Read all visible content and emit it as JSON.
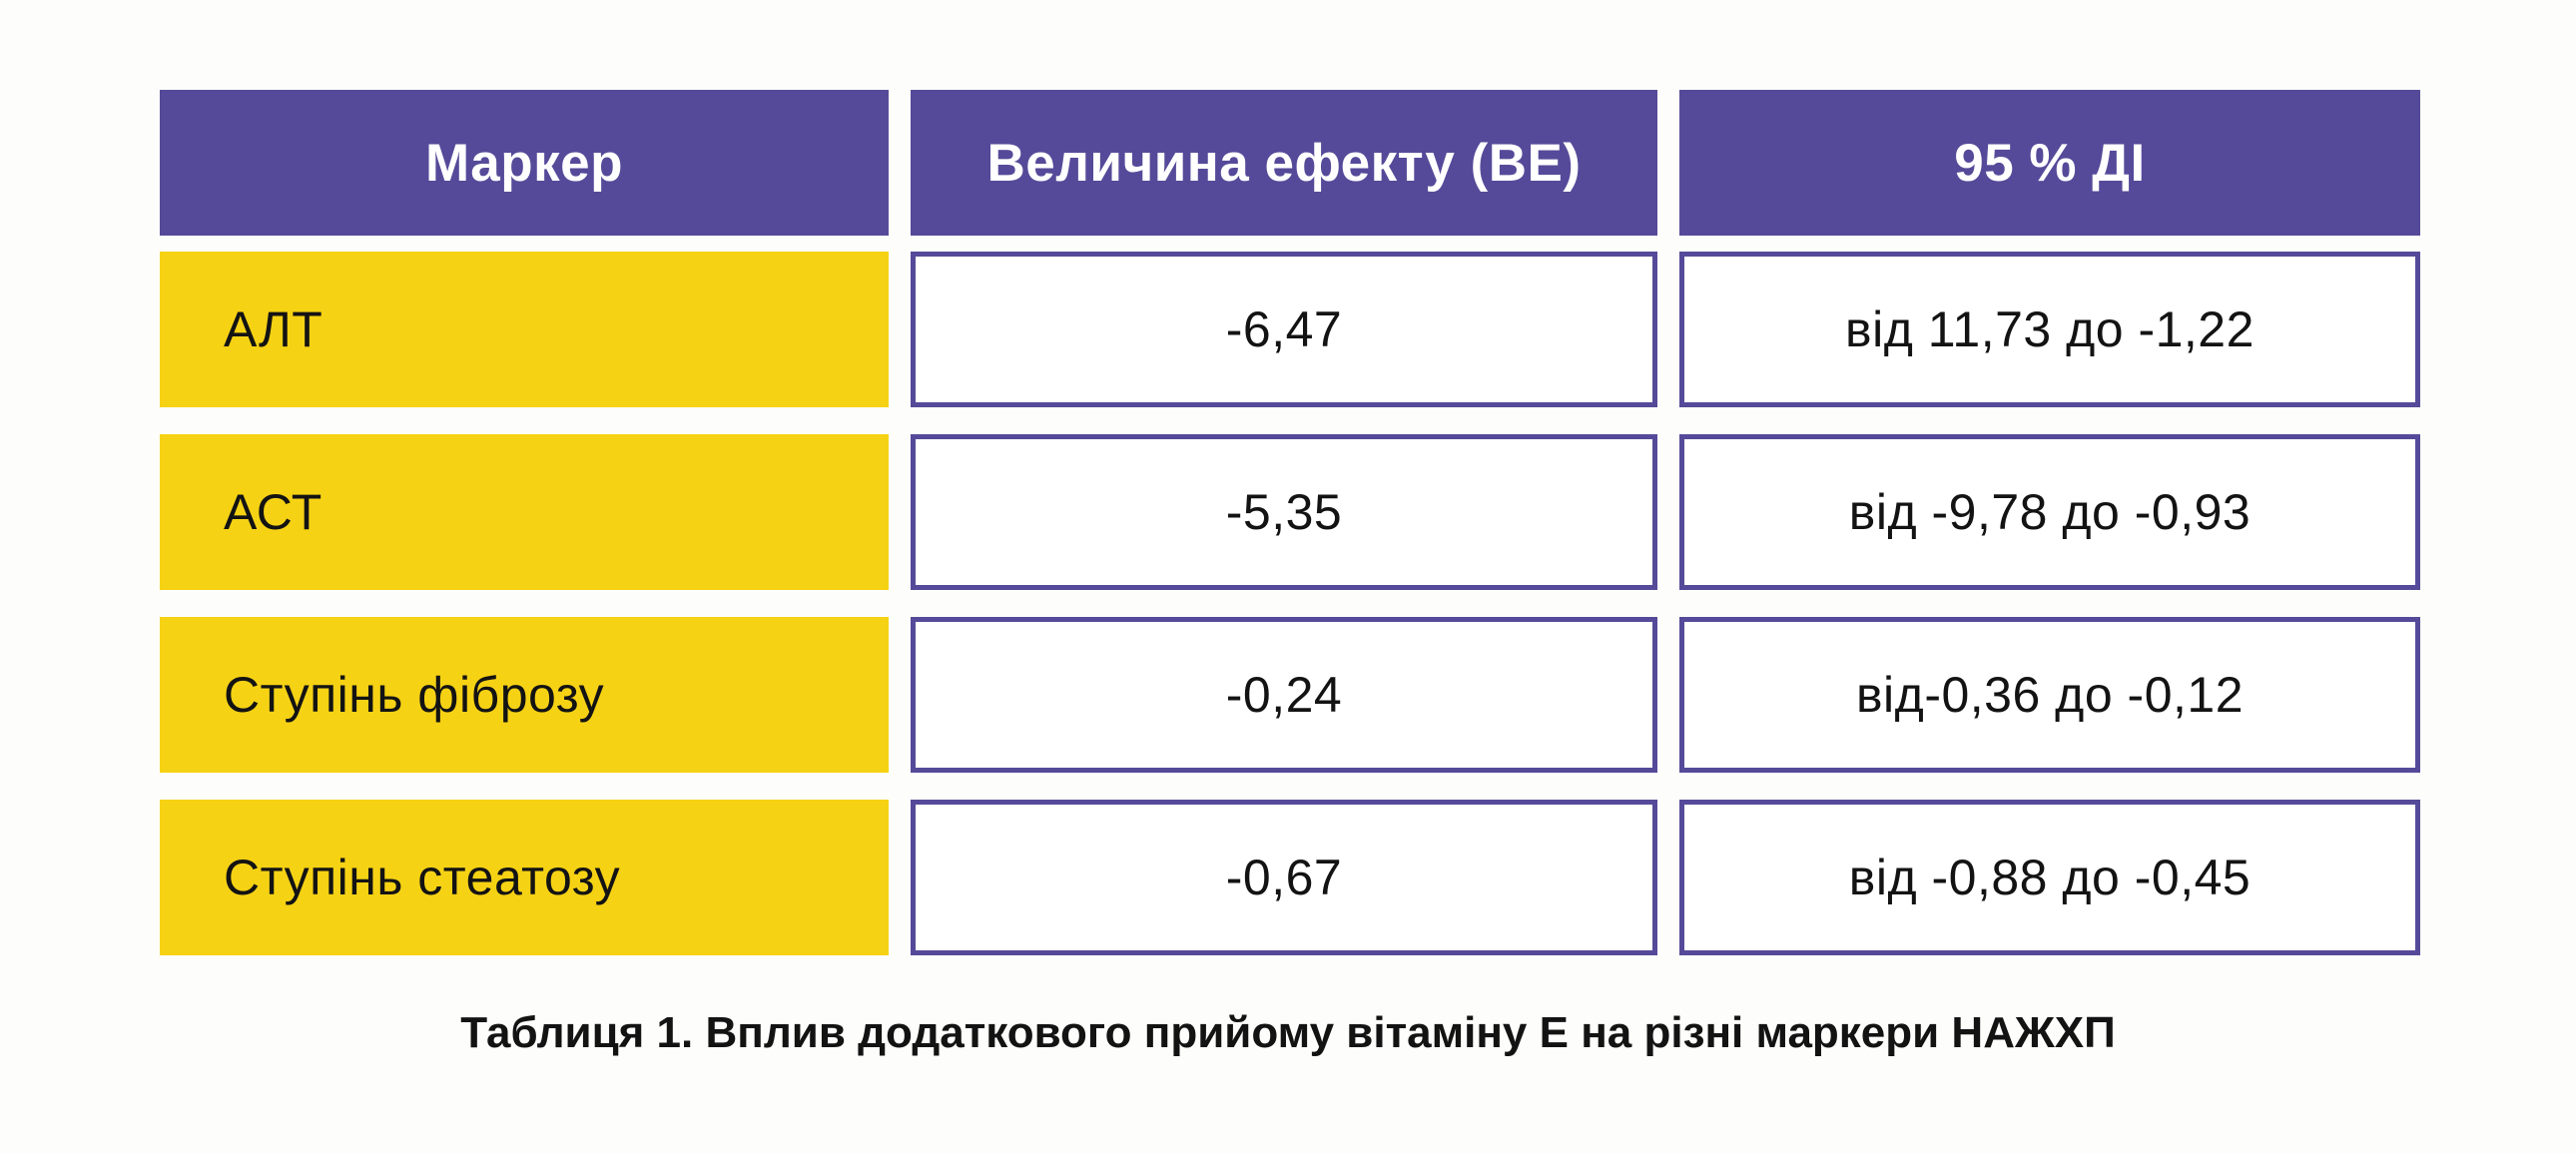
{
  "colors": {
    "header_bg": "#554A99",
    "cell_border": "#554A99",
    "label_bg": "#F6D214",
    "header_text": "#FFFFFF",
    "body_text": "#131313",
    "page_bg": "#FDFDFB"
  },
  "table": {
    "columns": [
      "Маркер",
      "Величина ефекту (ВЕ)",
      "95 % ДІ"
    ],
    "rows": [
      {
        "marker": "АЛТ",
        "effect": "-6,47",
        "ci": "від 11,73 до -1,22"
      },
      {
        "marker": "АСТ",
        "effect": "-5,35",
        "ci": "від -9,78 до -0,93"
      },
      {
        "marker": "Ступінь фіброзу",
        "effect": "-0,24",
        "ci": "від-0,36 до -0,12"
      },
      {
        "marker": "Ступінь стеатозу",
        "effect": "-0,67",
        "ci": "від -0,88 до -0,45"
      }
    ]
  },
  "caption": "Таблиця 1. Вплив додаткового прийому вітаміну Е на різні маркери НАЖХП",
  "chart_data": {
    "type": "table",
    "title": "Таблиця 1. Вплив додаткового прийому вітаміну Е на різні маркери НАЖХП",
    "columns": [
      "Маркер",
      "Величина ефекту (ВЕ)",
      "95 % ДІ"
    ],
    "rows": [
      [
        "АЛТ",
        "-6,47",
        "від 11,73 до -1,22"
      ],
      [
        "АСТ",
        "-5,35",
        "від -9,78 до -0,93"
      ],
      [
        "Ступінь фіброзу",
        "-0,24",
        "від-0,36 до -0,12"
      ],
      [
        "Ступінь стеатозу",
        "-0,67",
        "від -0,88 до -0,45"
      ]
    ]
  }
}
